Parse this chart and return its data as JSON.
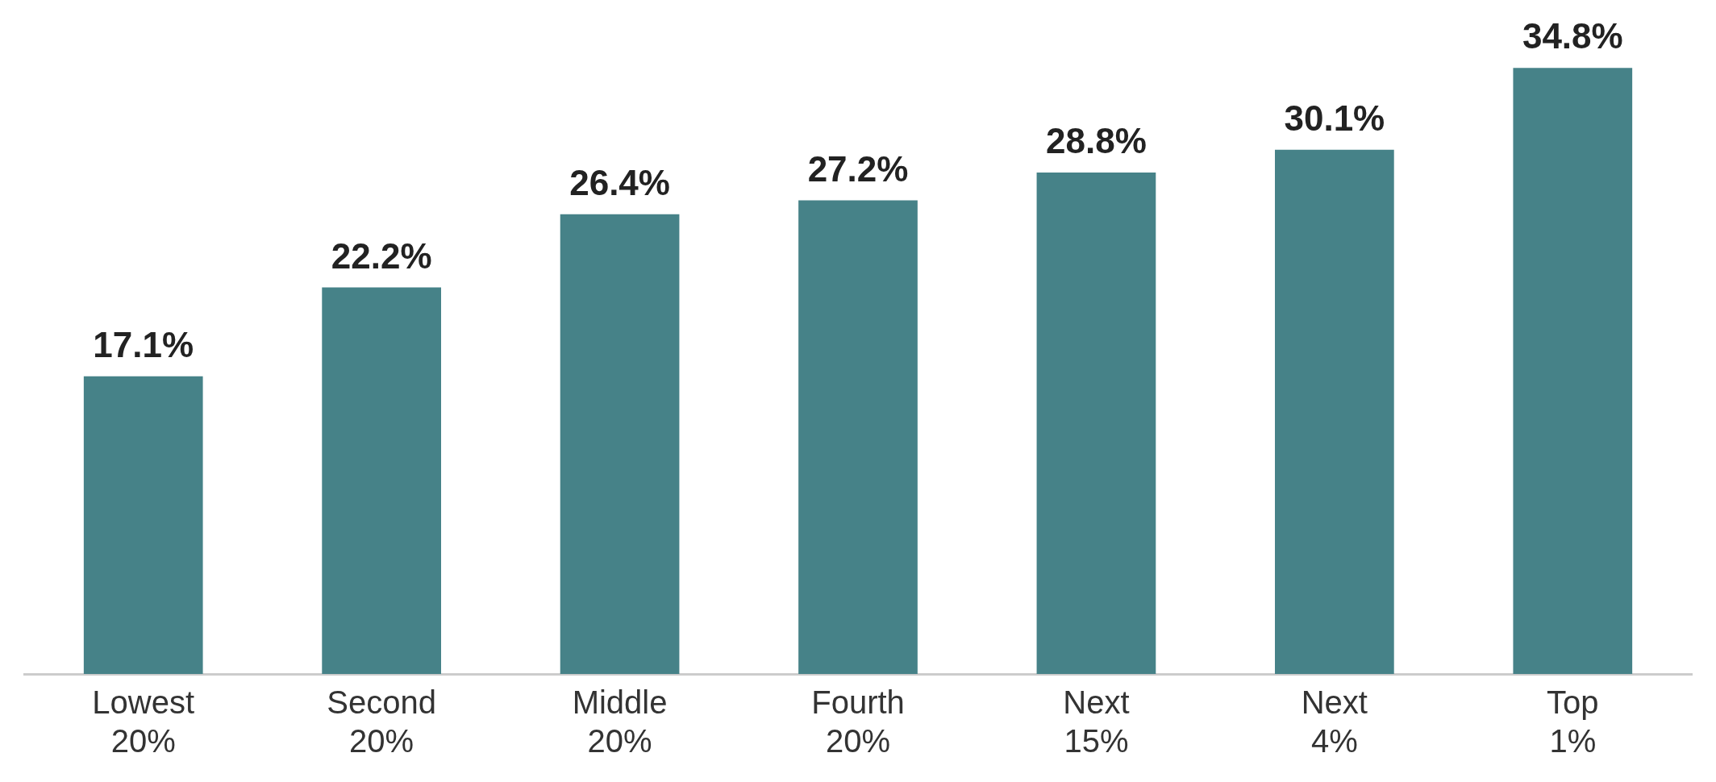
{
  "chart_data": {
    "type": "bar",
    "categories": [
      "Lowest 20%",
      "Second 20%",
      "Middle 20%",
      "Fourth 20%",
      "Next 15%",
      "Next 4%",
      "Top 1%"
    ],
    "values": [
      17.1,
      22.2,
      26.4,
      27.2,
      28.8,
      30.1,
      34.8
    ],
    "color": "#468288",
    "value_labels": [
      "17.1%",
      "22.2%",
      "26.4%",
      "27.2%",
      "28.8%",
      "30.1%",
      "34.8%"
    ],
    "grid": false,
    "legend": false
  }
}
